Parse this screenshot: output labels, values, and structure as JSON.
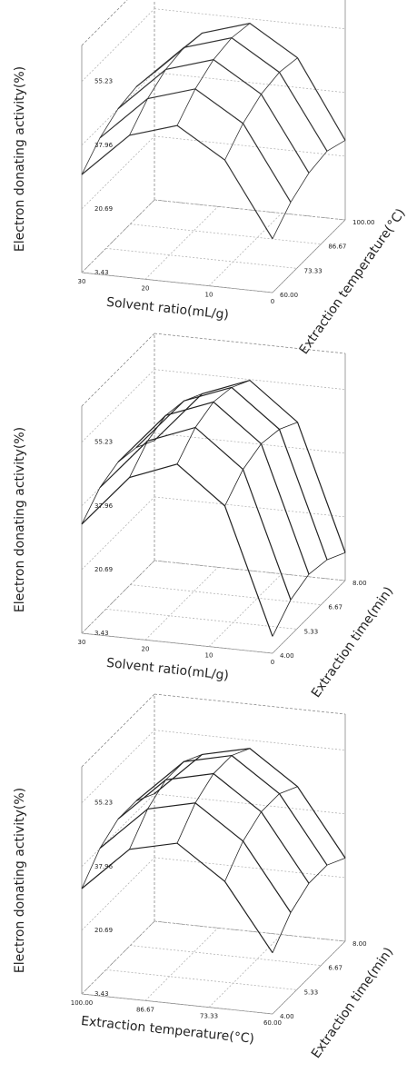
{
  "chart_data": [
    {
      "type": "surface",
      "zlabel": "Electron donating activity(%)",
      "xlabel": "Solvent ratio(mL/g)",
      "ylabel": "Extraction temperature(°C)",
      "x": [
        30,
        22.5,
        15,
        7.5,
        0
      ],
      "y": [
        60,
        70,
        80,
        90,
        100
      ],
      "z": [
        [
          30,
          42,
          46,
          38,
          18
        ],
        [
          35,
          47,
          51,
          43,
          23
        ],
        [
          38,
          50,
          54,
          46,
          26
        ],
        [
          39,
          51,
          55,
          47,
          27
        ],
        [
          38,
          50,
          54,
          46,
          25
        ]
      ],
      "xlim": [
        30,
        0
      ],
      "ylim": [
        60,
        100
      ],
      "zlim": [
        3.43,
        65
      ],
      "xticks": [
        30,
        20,
        10,
        0
      ],
      "yticks": [
        {
          "value": 60,
          "label": "60.00"
        },
        {
          "value": 73.33,
          "label": "73.33"
        },
        {
          "value": 86.67,
          "label": "86.67"
        },
        {
          "value": 100,
          "label": "100.00"
        }
      ],
      "zticks": [
        3.43,
        20.69,
        37.96,
        55.23
      ],
      "color": "#333333"
    },
    {
      "type": "surface",
      "zlabel": "Electron donating activity(%)",
      "xlabel": "Solvent ratio(mL/g)",
      "ylabel": "Extraction time(min)",
      "x": [
        30,
        22.5,
        15,
        7.5,
        0
      ],
      "y": [
        4,
        5,
        6,
        7,
        8
      ],
      "z": [
        [
          33,
          47,
          52,
          42,
          8
        ],
        [
          38,
          52,
          57,
          47,
          13
        ],
        [
          40,
          54,
          59,
          49,
          15
        ],
        [
          39,
          53,
          58,
          48,
          14
        ],
        [
          36,
          50,
          55,
          45,
          11
        ]
      ],
      "xlim": [
        30,
        0
      ],
      "ylim": [
        4,
        8
      ],
      "zlim": [
        3.43,
        65
      ],
      "xticks": [
        30,
        20,
        10,
        0
      ],
      "yticks": [
        {
          "value": 4,
          "label": "4.00"
        },
        {
          "value": 5.33,
          "label": "5.33"
        },
        {
          "value": 6.67,
          "label": "6.67"
        },
        {
          "value": 8,
          "label": "8.00"
        }
      ],
      "zticks": [
        3.43,
        20.69,
        37.96,
        55.23
      ],
      "color": "#222222"
    },
    {
      "type": "surface",
      "zlabel": "Electron donating activity(%)",
      "xlabel": "Extraction temperature(°C)",
      "ylabel": "Extraction time(min)",
      "x": [
        100,
        90,
        80,
        70,
        60
      ],
      "y": [
        4,
        5,
        6,
        7,
        8
      ],
      "z": [
        [
          32,
          44,
          47,
          38,
          20
        ],
        [
          38,
          50,
          53,
          44,
          26
        ],
        [
          41,
          53,
          56,
          47,
          29
        ],
        [
          41,
          53,
          56,
          47,
          29
        ],
        [
          38,
          50,
          53,
          44,
          26
        ]
      ],
      "xlim": [
        100,
        60
      ],
      "ylim": [
        4,
        8
      ],
      "zlim": [
        3.43,
        65
      ],
      "xticks": [
        {
          "value": 100,
          "label": "100.00"
        },
        {
          "value": 86.67,
          "label": "86.67"
        },
        {
          "value": 73.33,
          "label": "73.33"
        },
        {
          "value": 60,
          "label": "60.00"
        }
      ],
      "yticks": [
        {
          "value": 4,
          "label": "4.00"
        },
        {
          "value": 5.33,
          "label": "5.33"
        },
        {
          "value": 6.67,
          "label": "6.67"
        },
        {
          "value": 8,
          "label": "8.00"
        }
      ],
      "zticks": [
        3.43,
        20.69,
        37.96,
        55.23
      ],
      "color": "#222222"
    }
  ]
}
